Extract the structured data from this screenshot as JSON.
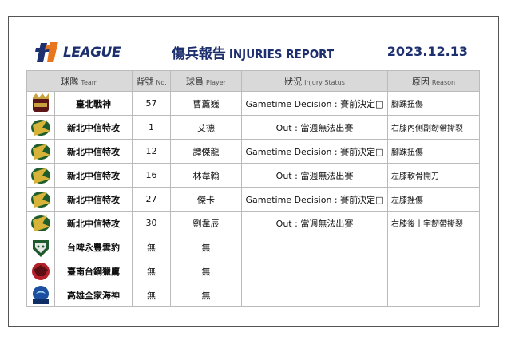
{
  "header": {
    "logo_text": "LEAGUE",
    "title_zh": "傷兵報告",
    "title_en": "INJURIES REPORT",
    "date": "2023.12.13"
  },
  "table": {
    "columns": [
      {
        "zh": "球隊",
        "en": "Team"
      },
      {
        "zh": "背號",
        "en": "No."
      },
      {
        "zh": "球員",
        "en": "Player"
      },
      {
        "zh": "狀況",
        "en": "Injury Status"
      },
      {
        "zh": "原因",
        "en": "Reason"
      }
    ],
    "rows": [
      {
        "team": "臺北戰神",
        "number": 57,
        "player": "曹薰巍",
        "status": "Gametime Decision : 賽前決定□",
        "reason": "腳踝扭傷"
      },
      {
        "team": "新北中信特攻",
        "number": 1,
        "player": "艾德",
        "status": "Out : 當週無法出賽",
        "reason": "右膝內側副韌帶撕裂"
      },
      {
        "team": "新北中信特攻",
        "number": 12,
        "player": "譚傑龍",
        "status": "Gametime Decision : 賽前決定□",
        "reason": "腳踝扭傷"
      },
      {
        "team": "新北中信特攻",
        "number": 16,
        "player": "林韋翰",
        "status": "Out : 當週無法出賽",
        "reason": "左膝軟骨開刀"
      },
      {
        "team": "新北中信特攻",
        "number": 27,
        "player": "傑卡",
        "status": "Gametime Decision : 賽前決定□",
        "reason": "左膝挫傷"
      },
      {
        "team": "新北中信特攻",
        "number": 30,
        "player": "劉韋辰",
        "status": "Out : 當週無法出賽",
        "reason": "右膝後十字韌帶撕裂"
      },
      {
        "team": "台啤永豐雲豹",
        "number": "無",
        "player": "無"
      },
      {
        "team": "臺南台鋼獵鷹",
        "number": "無",
        "player": "無"
      },
      {
        "team": "高雄全家海神",
        "number": "無",
        "player": "無"
      }
    ]
  }
}
